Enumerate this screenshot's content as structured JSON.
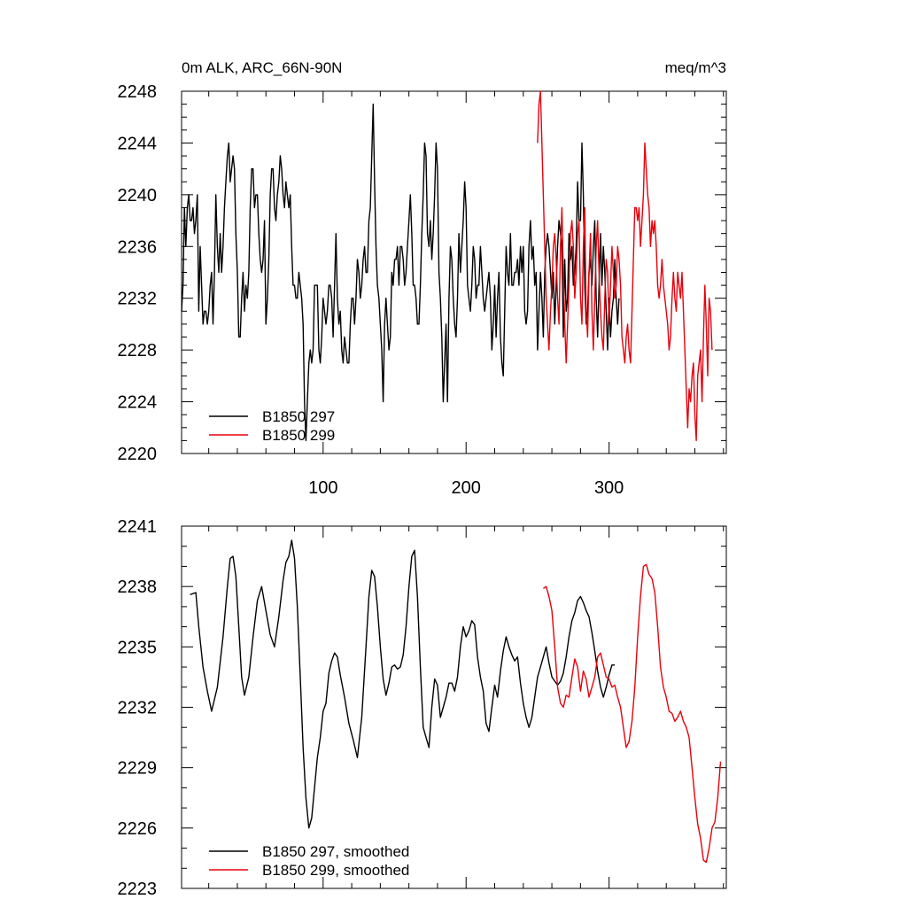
{
  "chart_data": [
    {
      "type": "line",
      "title_left": "0m ALK, ARC_66N-90N",
      "title_right": "meq/m^3",
      "xlim": [
        1,
        382
      ],
      "ylim": [
        2220,
        2248
      ],
      "x_ticks": [
        100,
        200,
        300
      ],
      "y_ticks": [
        2220,
        2224,
        2228,
        2232,
        2236,
        2240,
        2244,
        2248
      ],
      "y_minor_step": 1,
      "x_minor_step": 20,
      "legend": {
        "position": "bottom-left"
      },
      "series": [
        {
          "name": "B1850 297",
          "color": "#000000",
          "x_start": 1,
          "values": [
            2231,
            2233,
            2239,
            2236,
            2239,
            2240,
            2238,
            2238,
            2239,
            2237,
            2238,
            2240,
            2231,
            2236,
            2233,
            2230,
            2231,
            2231,
            2230,
            2231,
            2233,
            2234,
            2230,
            2234,
            2240,
            2236,
            2234,
            2237,
            2234,
            2236,
            2239,
            2241,
            2243,
            2244,
            2241,
            2242,
            2243,
            2242,
            2237,
            2234,
            2229,
            2229,
            2232,
            2234,
            2231,
            2233,
            2232,
            2234,
            2239,
            2242,
            2242,
            2239,
            2240,
            2240,
            2237,
            2235,
            2234,
            2235,
            2238,
            2230,
            2232,
            2235,
            2240,
            2242,
            2242,
            2239,
            2238,
            2240,
            2241,
            2243,
            2242,
            2240,
            2239,
            2241,
            2240,
            2239,
            2240,
            2236,
            2233,
            2233,
            2232,
            2232,
            2234,
            2233,
            2232,
            2230,
            2224,
            2221,
            2224,
            2227,
            2228,
            2227,
            2228,
            2233,
            2233,
            2233,
            2228,
            2227,
            2229,
            2232,
            2231,
            2230,
            2231,
            2233,
            2233,
            2232,
            2229,
            2233,
            2237,
            2232,
            2230,
            2231,
            2228,
            2227,
            2229,
            2228,
            2227,
            2227,
            2230,
            2232,
            2232,
            2230,
            2232,
            2235,
            2234,
            2232,
            2233,
            2235,
            2236,
            2234,
            2234,
            2238,
            2239,
            2243,
            2247,
            2241,
            2236,
            2233,
            2232,
            2230,
            2228,
            2224,
            2230,
            2232,
            2230,
            2228,
            2229,
            2234,
            2233,
            2235,
            2235,
            2236,
            2233,
            2236,
            2236,
            2235,
            2233,
            2234,
            2236,
            2238,
            2240,
            2237,
            2233,
            2233,
            2232,
            2230,
            2230,
            2233,
            2237,
            2240,
            2244,
            2243,
            2237,
            2236,
            2238,
            2235,
            2237,
            2240,
            2244,
            2242,
            2234,
            2232,
            2229,
            2224,
            2227,
            2230,
            2224,
            2232,
            2236,
            2235,
            2232,
            2230,
            2229,
            2232,
            2237,
            2234,
            2236,
            2238,
            2241,
            2239,
            2233,
            2232,
            2231,
            2233,
            2236,
            2235,
            2232,
            2233,
            2233,
            2236,
            2234,
            2232,
            2231,
            2232,
            2233,
            2234,
            2232,
            2228,
            2230,
            2233,
            2229,
            2232,
            2234,
            2229,
            2227,
            2226,
            2231,
            2236,
            2234,
            2233,
            2237,
            2233,
            2233,
            2234,
            2234,
            2235,
            2233,
            2236,
            2234,
            2236,
            2231,
            2230,
            2231,
            2236,
            2238,
            2235,
            2236,
            2233,
            2234,
            2228,
            2231,
            2234,
            2232,
            2229,
            2234,
            2236,
            2237,
            2236,
            2234,
            2232,
            2234,
            2230,
            2233,
            2236,
            2238,
            2237,
            2236,
            2229,
            2235,
            2231,
            2232,
            2237,
            2235,
            2236,
            2233,
            2234,
            2236,
            2241,
            2238,
            2238,
            2244,
            2240,
            2233,
            2230,
            2231,
            2234,
            2235,
            2233,
            2236,
            2238,
            2232,
            2229,
            2233,
            2237,
            2233,
            2236,
            2234,
            2231,
            2228,
            2232,
            2229,
            2231,
            2232,
            2235,
            2232,
            2230,
            2232
          ]
        },
        {
          "name": "B1850 299",
          "color": "#e8000b",
          "x_start": 250,
          "values": [
            2244,
            2247,
            2248,
            2244,
            2240,
            2236,
            2232,
            2230,
            2228,
            2231,
            2233,
            2236,
            2237,
            2235,
            2232,
            2230,
            2236,
            2239,
            2234,
            2230,
            2227,
            2230,
            2233,
            2237,
            2238,
            2236,
            2232,
            2234,
            2237,
            2238,
            2232,
            2230,
            2236,
            2239,
            2231,
            2229,
            2234,
            2237,
            2231,
            2228,
            2232,
            2236,
            2238,
            2234,
            2231,
            2229,
            2228,
            2232,
            2235,
            2234,
            2230,
            2233,
            2236,
            2234,
            2232,
            2233,
            2236,
            2235,
            2233,
            2229,
            2228,
            2227,
            2229,
            2230,
            2228,
            2227,
            2231,
            2235,
            2239,
            2239,
            2238,
            2239,
            2236,
            2238,
            2240,
            2244,
            2242,
            2240,
            2239,
            2236,
            2238,
            2237,
            2238,
            2236,
            2233,
            2232,
            2233,
            2235,
            2233,
            2232,
            2231,
            2230,
            2228,
            2229,
            2232,
            2234,
            2232,
            2231,
            2234,
            2233,
            2232,
            2234,
            2231,
            2228,
            2225,
            2222,
            2225,
            2224,
            2226,
            2227,
            2223,
            2221,
            2226,
            2227,
            2228,
            2224,
            2229,
            2233,
            2230,
            2226,
            2232,
            2231,
            2228
          ]
        }
      ],
      "legend_entries": [
        "B1850 297",
        "B1850 299"
      ]
    },
    {
      "type": "line",
      "title_left": "",
      "title_right": "",
      "xlim": [
        1,
        382
      ],
      "ylim": [
        2223,
        2241
      ],
      "x_ticks": [
        100,
        200,
        300
      ],
      "y_ticks": [
        2223,
        2226,
        2229,
        2232,
        2235,
        2238,
        2241
      ],
      "y_minor_step": 1,
      "x_minor_step": 20,
      "legend": {
        "position": "bottom-left"
      },
      "series": [
        {
          "name": "B1850 297, smoothed",
          "color": "#000000",
          "x_points": [
            7,
            11,
            13,
            16,
            19,
            22,
            26,
            30,
            33,
            35,
            37,
            39,
            41,
            43,
            45,
            48,
            51,
            54,
            57,
            60,
            63,
            66,
            69,
            72,
            74,
            76,
            78,
            80,
            82,
            84,
            86,
            88,
            90,
            92,
            94,
            96,
            98,
            100,
            102,
            104,
            106,
            108,
            110,
            112,
            115,
            118,
            121,
            124,
            127,
            130,
            132,
            134,
            136,
            138,
            140,
            142,
            144,
            146,
            148,
            150,
            152,
            154,
            156,
            158,
            160,
            162,
            164,
            166,
            168,
            170,
            172,
            174,
            176,
            178,
            180,
            182,
            184,
            186,
            188,
            190,
            192,
            194,
            196,
            198,
            200,
            202,
            204,
            206,
            208,
            210,
            212,
            214,
            216,
            218,
            220,
            222,
            224,
            226,
            228,
            230,
            232,
            234,
            236,
            238,
            240,
            242,
            244,
            246,
            248,
            250,
            252,
            254,
            256,
            258,
            260,
            262,
            264,
            266,
            268,
            270,
            272,
            274,
            276,
            278,
            280,
            282,
            284,
            286,
            288,
            290,
            292,
            294,
            296,
            298,
            300,
            302,
            304
          ],
          "values": [
            2237.6,
            2237.7,
            2236.0,
            2234.0,
            2232.8,
            2231.8,
            2233.0,
            2235.5,
            2238.0,
            2239.4,
            2239.5,
            2238.5,
            2236.0,
            2233.5,
            2232.6,
            2233.5,
            2235.5,
            2237.3,
            2238.0,
            2236.8,
            2235.6,
            2235.0,
            2236.5,
            2238.3,
            2239.2,
            2239.5,
            2240.3,
            2239.4,
            2237.0,
            2233.5,
            2230.0,
            2227.5,
            2226.0,
            2226.5,
            2228.0,
            2229.5,
            2230.5,
            2231.8,
            2232.2,
            2233.7,
            2234.3,
            2234.7,
            2234.5,
            2233.6,
            2232.5,
            2231.2,
            2230.4,
            2229.5,
            2231.5,
            2235.0,
            2237.5,
            2238.8,
            2238.5,
            2237.0,
            2235.0,
            2233.4,
            2232.6,
            2233.2,
            2234.0,
            2234.1,
            2233.9,
            2234.0,
            2234.6,
            2236.0,
            2238.0,
            2239.5,
            2239.8,
            2237.5,
            2234.0,
            2231.0,
            2230.5,
            2230.0,
            2232.0,
            2233.4,
            2233.1,
            2231.5,
            2232.0,
            2232.5,
            2233.2,
            2233.2,
            2232.8,
            2233.5,
            2235.0,
            2236.0,
            2235.5,
            2235.8,
            2236.3,
            2236.1,
            2234.5,
            2233.5,
            2232.8,
            2231.2,
            2230.8,
            2232.0,
            2233.1,
            2232.5,
            2233.8,
            2234.8,
            2235.5,
            2235.0,
            2234.6,
            2234.3,
            2234.5,
            2233.2,
            2232.2,
            2231.5,
            2231.0,
            2231.5,
            2232.5,
            2233.5,
            2234.0,
            2234.5,
            2235.0,
            2234.2,
            2233.5,
            2233.3,
            2233.1,
            2233.3,
            2233.7,
            2234.5,
            2235.5,
            2236.3,
            2236.7,
            2237.3,
            2237.5,
            2237.2,
            2236.8,
            2236.5,
            2235.7,
            2234.8,
            2233.8,
            2233.0,
            2232.5,
            2233.0,
            2233.6,
            2234.1,
            2234.1
          ]
        },
        {
          "name": "B1850 299, smoothed",
          "color": "#e8000b",
          "x_points": [
            254,
            256,
            258,
            260,
            262,
            264,
            266,
            268,
            270,
            272,
            274,
            276,
            278,
            280,
            282,
            284,
            286,
            288,
            290,
            292,
            294,
            296,
            298,
            300,
            302,
            304,
            306,
            308,
            310,
            312,
            314,
            316,
            318,
            320,
            322,
            324,
            326,
            328,
            330,
            332,
            334,
            336,
            338,
            340,
            342,
            344,
            346,
            348,
            350,
            352,
            354,
            356,
            358,
            360,
            362,
            364,
            366,
            368,
            370,
            372,
            374,
            376,
            378
          ],
          "values": [
            2237.9,
            2238.0,
            2237.5,
            2236.8,
            2235.0,
            2233.0,
            2232.2,
            2232.0,
            2232.6,
            2232.5,
            2233.5,
            2234.4,
            2234.0,
            2232.8,
            2233.8,
            2233.4,
            2232.5,
            2233.0,
            2233.5,
            2234.5,
            2234.7,
            2234.1,
            2233.5,
            2233.4,
            2233.0,
            2233.1,
            2232.5,
            2232.0,
            2231.0,
            2230.0,
            2230.3,
            2231.3,
            2233.0,
            2235.5,
            2237.5,
            2239.0,
            2239.1,
            2238.6,
            2238.4,
            2237.7,
            2236.0,
            2234.0,
            2233.0,
            2232.5,
            2231.8,
            2231.7,
            2231.3,
            2231.5,
            2231.8,
            2231.3,
            2231.0,
            2230.5,
            2229.0,
            2227.5,
            2226.2,
            2225.5,
            2224.4,
            2224.3,
            2225.0,
            2226.0,
            2226.3,
            2227.5,
            2229.3
          ]
        }
      ],
      "legend_entries": [
        "B1850 297, smoothed",
        "B1850 299, smoothed"
      ]
    }
  ]
}
